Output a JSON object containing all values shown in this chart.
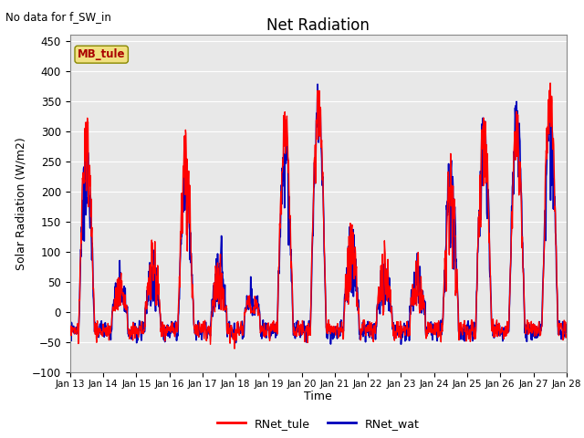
{
  "title": "Net Radiation",
  "xlabel": "Time",
  "ylabel": "Solar Radiation (W/m2)",
  "ylim": [
    -100,
    460
  ],
  "color_tule": "#ff0000",
  "color_wat": "#0000bb",
  "no_data_text": "No data for f_SW_in",
  "mb_tule_label": "MB_tule",
  "legend_entries": [
    "RNet_tule",
    "RNet_wat"
  ],
  "bg_color": "#e8e8e8",
  "yticks": [
    -100,
    -50,
    0,
    50,
    100,
    150,
    200,
    250,
    300,
    350,
    400,
    450
  ],
  "xtick_labels": [
    "Jan 13",
    "Jan 14",
    "Jan 15",
    "Jan 16",
    "Jan 17",
    "Jan 18",
    "Jan 19",
    "Jan 20",
    "Jan 21",
    "Jan 22",
    "Jan 23",
    "Jan 24",
    "Jan 25",
    "Jan 26",
    "Jan 27",
    "Jan 28"
  ]
}
